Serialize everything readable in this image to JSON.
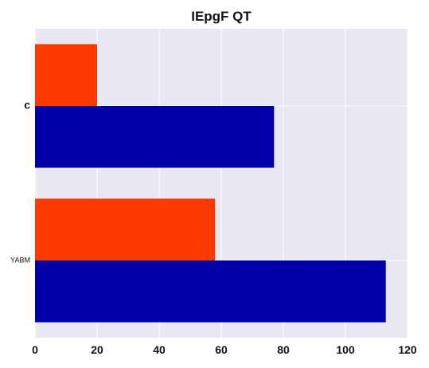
{
  "chart_data": {
    "type": "bar",
    "orientation": "horizontal",
    "title": "IEpgF QT",
    "xlabel": "",
    "ylabel": "",
    "categories": [
      "YABM",
      "c"
    ],
    "series": [
      {
        "values": [
          113,
          77
        ],
        "color": "#0000a8"
      },
      {
        "values": [
          58,
          20
        ],
        "color": "#ff3a00"
      }
    ],
    "xlim": [
      0,
      120
    ],
    "xticks": [
      0,
      20,
      40,
      60,
      80,
      100,
      120
    ],
    "grid": true,
    "legend": "none",
    "background": "#e8e8f2"
  }
}
